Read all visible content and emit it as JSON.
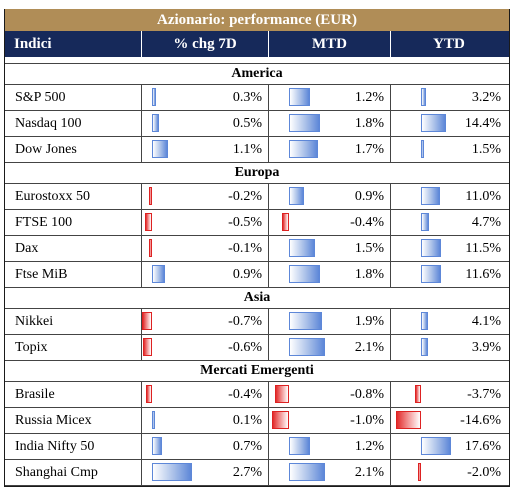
{
  "title": "Azionario: performance (EUR)",
  "headers": [
    "Indici",
    "% chg 7D",
    "MTD",
    "YTD"
  ],
  "colors": {
    "title_bg": "#b08d57",
    "header_bg": "#16295a",
    "positive_bar": "#5d87d8",
    "negative_bar": "#e22b2b"
  },
  "sections": [
    {
      "name": "America",
      "rows": [
        {
          "name": "S&P 500",
          "d7": "0.3%",
          "mtd": "1.2%",
          "ytd": "3.2%"
        },
        {
          "name": "Nasdaq 100",
          "d7": "0.5%",
          "mtd": "1.8%",
          "ytd": "14.4%"
        },
        {
          "name": "Dow Jones",
          "d7": "1.1%",
          "mtd": "1.7%",
          "ytd": "1.5%"
        }
      ]
    },
    {
      "name": "Europa",
      "rows": [
        {
          "name": "Eurostoxx 50",
          "d7": "-0.2%",
          "mtd": "0.9%",
          "ytd": "11.0%"
        },
        {
          "name": "FTSE 100",
          "d7": "-0.5%",
          "mtd": "-0.4%",
          "ytd": "4.7%"
        },
        {
          "name": "Dax",
          "d7": "-0.1%",
          "mtd": "1.5%",
          "ytd": "11.5%"
        },
        {
          "name": "Ftse MiB",
          "d7": "0.9%",
          "mtd": "1.8%",
          "ytd": "11.6%"
        }
      ]
    },
    {
      "name": "Asia",
      "rows": [
        {
          "name": "Nikkei",
          "d7": "-0.7%",
          "mtd": "1.9%",
          "ytd": "4.1%"
        },
        {
          "name": "Topix",
          "d7": "-0.6%",
          "mtd": "2.1%",
          "ytd": "3.9%"
        }
      ]
    },
    {
      "name": "Mercati Emergenti",
      "rows": [
        {
          "name": "Brasile",
          "d7": "-0.4%",
          "mtd": "-0.8%",
          "ytd": "-3.7%"
        },
        {
          "name": "Russia Micex",
          "d7": "0.1%",
          "mtd": "-1.0%",
          "ytd": "-14.6%"
        },
        {
          "name": "India Nifty 50",
          "d7": "0.7%",
          "mtd": "1.2%",
          "ytd": "17.6%"
        },
        {
          "name": "Shanghai Cmp",
          "d7": "2.7%",
          "mtd": "2.1%",
          "ytd": "-2.0%"
        }
      ]
    }
  ]
}
